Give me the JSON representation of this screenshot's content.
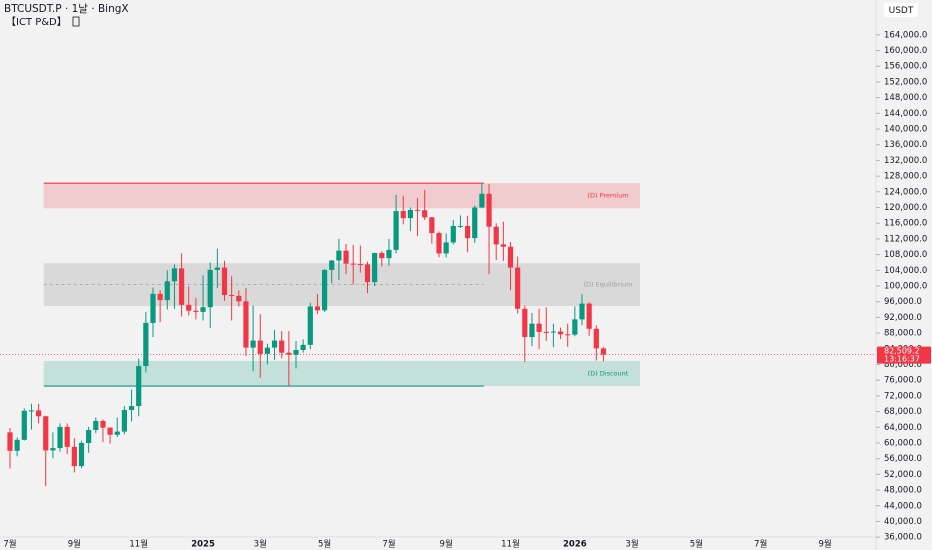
{
  "chart_data": {
    "type": "candlestick",
    "title": "BTCUSDT.P · 1날 · BingX",
    "subtitle": "【ICT P&D】",
    "currency": "USDT",
    "up_color": "#089981",
    "down_color": "#f23645",
    "grid": false,
    "categories": [
      "7월",
      null,
      null,
      null,
      null,
      null,
      null,
      null,
      null,
      "9월",
      null,
      null,
      null,
      null,
      null,
      null,
      null,
      null,
      "11월",
      null,
      null,
      null,
      null,
      null,
      null,
      null,
      null,
      "2025",
      null,
      null,
      null,
      null,
      null,
      null,
      null,
      "3월",
      null,
      null,
      null,
      null,
      null,
      null,
      null,
      null,
      "5월",
      null,
      null,
      null,
      null,
      null,
      null,
      null,
      null,
      "7월",
      null,
      null,
      null,
      null,
      null,
      null,
      null,
      "9월",
      null,
      null,
      null,
      null,
      null,
      null,
      null,
      null,
      "11월",
      null,
      null,
      null,
      null,
      null,
      null,
      null,
      null,
      "2026",
      null,
      null,
      null,
      null,
      null,
      null,
      null,
      "3월",
      null,
      null,
      null,
      null,
      null,
      null,
      null,
      null,
      "5월",
      null,
      null,
      null,
      null,
      null,
      null,
      null,
      null,
      "7월",
      null,
      null,
      null,
      null,
      null,
      null,
      null,
      null,
      "9월",
      null,
      null,
      null,
      null,
      null
    ],
    "open": [
      62700,
      58000,
      60800,
      68200,
      68300,
      66800,
      58100,
      58700,
      64100,
      59000,
      54100,
      60000,
      63300,
      65600,
      63900,
      62100,
      62900,
      68400,
      69400,
      79600,
      90600,
      98000,
      96400,
      101200,
      104500,
      95200,
      93700,
      93400,
      94600,
      104100,
      104700,
      97700,
      97500,
      96100,
      84300,
      86100,
      82700,
      84300,
      86100,
      83000,
      82500,
      83700,
      85000,
      94800,
      93800,
      104100,
      106500,
      109000,
      105700,
      105600,
      105500,
      101000,
      108400,
      107100,
      109200,
      119100,
      117300,
      119400,
      119300,
      117500,
      113500,
      108300,
      111100,
      115300,
      115300,
      112200,
      120000,
      123500,
      115100,
      110600,
      110000,
      104700,
      94200,
      87000,
      90400,
      88300,
      88200,
      88400,
      87700,
      87600,
      91500,
      95500,
      89100,
      84100,
      null,
      null,
      null,
      null,
      null,
      null,
      null,
      null,
      null,
      null,
      null,
      null,
      null,
      null,
      null,
      null,
      null,
      null,
      null,
      null,
      null,
      null,
      null,
      null,
      null,
      null,
      null,
      null,
      null,
      null,
      null,
      null,
      null,
      null,
      null,
      null
    ],
    "high": [
      63800,
      61400,
      68800,
      70000,
      70000,
      66900,
      62700,
      65000,
      65000,
      61200,
      60600,
      64100,
      66500,
      66000,
      64000,
      66500,
      69400,
      73600,
      81500,
      93400,
      99600,
      98900,
      104000,
      105500,
      108300,
      99900,
      97000,
      102700,
      106000,
      109500,
      106400,
      102500,
      98900,
      99500,
      95000,
      92800,
      85300,
      88800,
      88500,
      88500,
      86000,
      86400,
      95700,
      97900,
      104300,
      106600,
      112000,
      110700,
      110500,
      110300,
      106200,
      108500,
      108900,
      112000,
      123200,
      123000,
      120000,
      122400,
      124500,
      117600,
      113900,
      113400,
      116800,
      118000,
      117900,
      120500,
      126200,
      126000,
      116000,
      116400,
      111200,
      107500,
      95000,
      93100,
      94200,
      94600,
      90400,
      89400,
      90400,
      94800,
      97900,
      95900,
      90000,
      84500,
      null,
      null,
      null,
      null,
      null,
      null,
      null,
      null,
      null,
      null,
      null,
      null,
      null,
      null,
      null,
      null,
      null,
      null,
      null,
      null,
      null,
      null,
      null,
      null,
      null,
      null,
      null,
      null,
      null,
      null,
      null,
      null,
      null,
      null,
      null,
      null
    ],
    "low": [
      53500,
      56600,
      60600,
      63400,
      65000,
      49000,
      56100,
      57800,
      57200,
      52500,
      53600,
      57500,
      62500,
      60200,
      59800,
      61500,
      62200,
      65500,
      66800,
      78000,
      87000,
      90800,
      94000,
      94200,
      92200,
      92500,
      91500,
      91200,
      89300,
      99500,
      96200,
      91200,
      94800,
      82200,
      78300,
      76600,
      80000,
      81200,
      81600,
      74500,
      79000,
      83000,
      83900,
      92800,
      93400,
      100700,
      101500,
      103000,
      100400,
      103400,
      98200,
      100000,
      105000,
      105200,
      108300,
      115700,
      114000,
      112700,
      116800,
      110800,
      107300,
      107300,
      110600,
      114800,
      108600,
      111000,
      119800,
      103000,
      106600,
      106400,
      98900,
      93000,
      80600,
      84700,
      83900,
      86000,
      84400,
      86500,
      84500,
      87200,
      90000,
      87300,
      81000,
      80800,
      null,
      null,
      null,
      null,
      null,
      null,
      null,
      null,
      null,
      null,
      null,
      null,
      null,
      null,
      null,
      null,
      null,
      null,
      null,
      null,
      null,
      null,
      null,
      null,
      null,
      null,
      null,
      null,
      null,
      null,
      null,
      null,
      null,
      null,
      null,
      null
    ],
    "close": [
      58000,
      60800,
      68200,
      68300,
      66800,
      58100,
      58700,
      64100,
      59000,
      54100,
      60000,
      63300,
      65600,
      63900,
      62100,
      62900,
      68400,
      69400,
      79600,
      90600,
      98000,
      96400,
      101200,
      104500,
      95200,
      93700,
      93400,
      94600,
      104100,
      104700,
      97700,
      97500,
      96100,
      84300,
      86100,
      82700,
      84300,
      86100,
      83000,
      82500,
      83700,
      85000,
      94800,
      93800,
      104100,
      106500,
      109000,
      105700,
      105600,
      105500,
      101000,
      108400,
      107100,
      109200,
      119100,
      117300,
      119400,
      119300,
      117500,
      113500,
      108300,
      111100,
      115300,
      115300,
      112200,
      120000,
      123500,
      115100,
      110600,
      110000,
      104700,
      94200,
      87000,
      90400,
      88300,
      88200,
      88400,
      87700,
      87600,
      91500,
      95500,
      89100,
      84100,
      82509.2,
      null,
      null,
      null,
      null,
      null,
      null,
      null,
      null,
      null,
      null,
      null,
      null,
      null,
      null,
      null,
      null,
      null,
      null,
      null,
      null,
      null,
      null,
      null,
      null,
      null,
      null,
      null,
      null,
      null,
      null,
      null,
      null,
      null,
      null,
      null,
      null
    ],
    "last_price": {
      "value": 82509.2,
      "label": "82,509.2"
    },
    "countdown": "13:16:37",
    "zones": [
      {
        "label": "(D) Premium",
        "range": [
          119800,
          126200
        ],
        "color": "#f23645"
      },
      {
        "label": "(D) Equilibrium",
        "range": [
          94900,
          105800
        ],
        "mid": 100350,
        "color": "#9e9e9e"
      },
      {
        "label": "(D) Discount",
        "range": [
          74500,
          80900
        ],
        "color": "#089981"
      }
    ],
    "ylim": [
      34000,
      166000
    ],
    "yticks": [
      {
        "value": 36000,
        "label": "36,000.0"
      },
      {
        "value": 40000,
        "label": "40,000.0"
      },
      {
        "value": 44000,
        "label": "44,000.0"
      },
      {
        "value": 48000,
        "label": "48,000.0"
      },
      {
        "value": 52000,
        "label": "52,000.0"
      },
      {
        "value": 56000,
        "label": "56,000.0"
      },
      {
        "value": 60000,
        "label": "60,000.0"
      },
      {
        "value": 64000,
        "label": "64,000.0"
      },
      {
        "value": 68000,
        "label": "68,000.0"
      },
      {
        "value": 72000,
        "label": "72,000.0"
      },
      {
        "value": 76000,
        "label": "76,000.0"
      },
      {
        "value": 80000,
        "label": "80,000.0"
      },
      {
        "value": 84000,
        "label": "84,000.0"
      },
      {
        "value": 88000,
        "label": "88,000.0"
      },
      {
        "value": 92000,
        "label": "92,000.0"
      },
      {
        "value": 96000,
        "label": "96,000.0"
      },
      {
        "value": 100000,
        "label": "100,000.0"
      },
      {
        "value": 104000,
        "label": "104,000.0"
      },
      {
        "value": 108000,
        "label": "108,000.0"
      },
      {
        "value": 112000,
        "label": "112,000.0"
      },
      {
        "value": 116000,
        "label": "116,000.0"
      },
      {
        "value": 120000,
        "label": "120,000.0"
      },
      {
        "value": 124000,
        "label": "124,000.0"
      },
      {
        "value": 128000,
        "label": "128,000.0"
      },
      {
        "value": 132000,
        "label": "132,000.0"
      },
      {
        "value": 136000,
        "label": "136,000.0"
      },
      {
        "value": 140000,
        "label": "140,000.0"
      },
      {
        "value": 144000,
        "label": "144,000.0"
      },
      {
        "value": 148000,
        "label": "148,000.0"
      },
      {
        "value": 152000,
        "label": "152,000.0"
      },
      {
        "value": 156000,
        "label": "156,000.0"
      },
      {
        "value": 160000,
        "label": "160,000.0"
      },
      {
        "value": 164000,
        "label": "164,000.0"
      }
    ]
  }
}
